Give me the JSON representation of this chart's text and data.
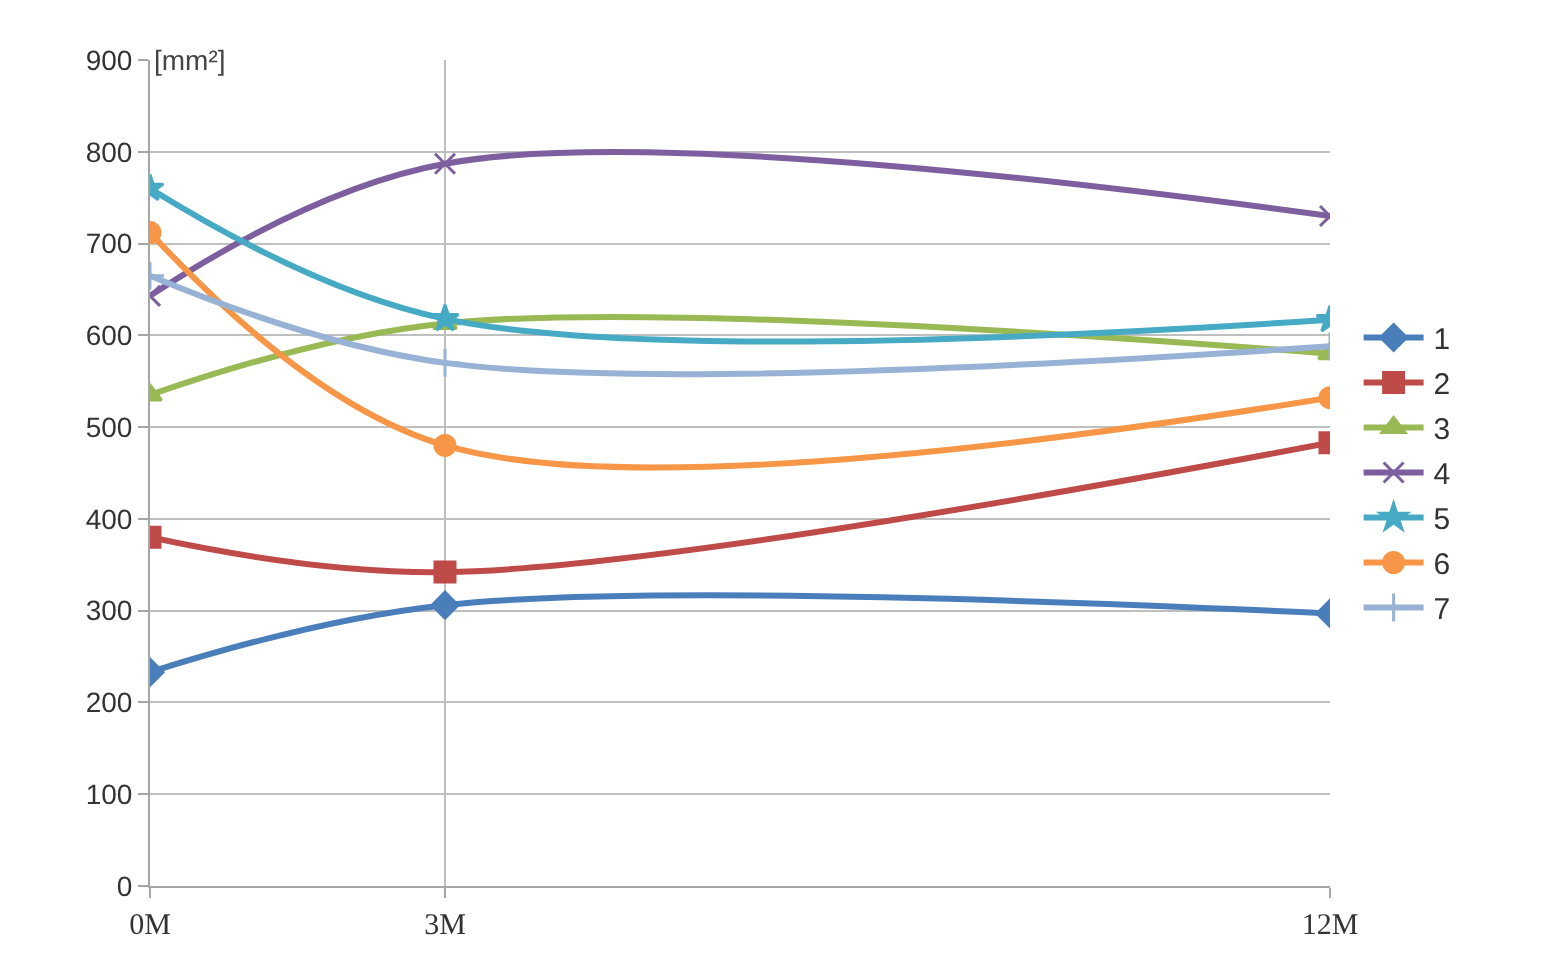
{
  "chart_data": {
    "type": "line",
    "ylabel": "[mm²]",
    "x": [
      0,
      3,
      12
    ],
    "xlim": [
      0,
      12
    ],
    "xticks": [
      {
        "value": 0,
        "label": "0M"
      },
      {
        "value": 3,
        "label": "3M"
      },
      {
        "value": 12,
        "label": "12M"
      }
    ],
    "ylim": [
      0,
      900
    ],
    "yticks": [
      0,
      100,
      200,
      300,
      400,
      500,
      600,
      700,
      800,
      900
    ],
    "grid": true,
    "legend": "right",
    "series": [
      {
        "name": "1",
        "color": "#4a7ebb",
        "marker": "diamond",
        "values": [
          233,
          306,
          297
        ]
      },
      {
        "name": "2",
        "color": "#be4b48",
        "marker": "square",
        "values": [
          380,
          342,
          483
        ]
      },
      {
        "name": "3",
        "color": "#98b954",
        "marker": "triangle",
        "values": [
          535,
          613,
          580
        ]
      },
      {
        "name": "4",
        "color": "#7d5fa0",
        "marker": "x",
        "values": [
          643,
          787,
          730
        ]
      },
      {
        "name": "5",
        "color": "#46aac5",
        "marker": "star",
        "values": [
          760,
          618,
          617
        ]
      },
      {
        "name": "6",
        "color": "#f79646",
        "marker": "circle",
        "values": [
          712,
          480,
          532
        ]
      },
      {
        "name": "7",
        "color": "#98b2d6",
        "marker": "cross",
        "values": [
          665,
          570,
          588
        ]
      }
    ]
  }
}
